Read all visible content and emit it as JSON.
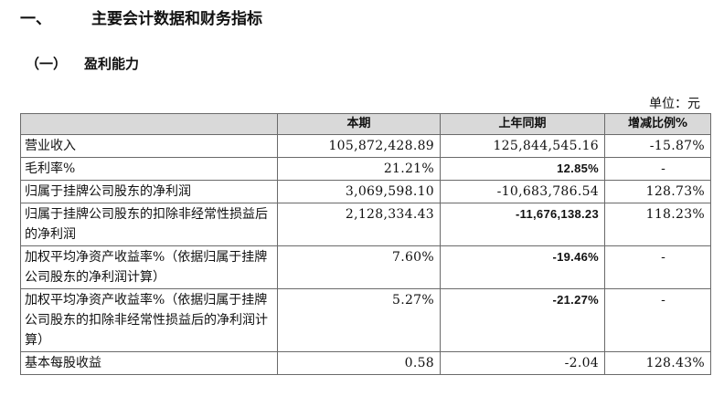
{
  "heading1": {
    "number": "一、",
    "title": "主要会计数据和财务指标"
  },
  "heading2": {
    "number": "（一）",
    "title": "盈利能力"
  },
  "unit_label": "单位：元",
  "table": {
    "headers": [
      "",
      "本期",
      "上年同期",
      "增减比例%"
    ],
    "rows": [
      {
        "label": "营业收入",
        "current": "105,872,428.89",
        "previous": "125,844,545.16",
        "change": "-15.87%"
      },
      {
        "label": "毛利率%",
        "current": "21.21%",
        "previous": "12.85%",
        "change": "-"
      },
      {
        "label": "归属于挂牌公司股东的净利润",
        "current": "3,069,598.10",
        "previous": "-10,683,786.54",
        "change": "128.73%"
      },
      {
        "label": "归属于挂牌公司股东的扣除非经常性损益后的净利润",
        "current": "2,128,334.43",
        "previous": "-11,676,138.23",
        "change": "118.23%"
      },
      {
        "label": "加权平均净资产收益率%（依据归属于挂牌公司股东的净利润计算）",
        "current": "7.60%",
        "previous": "-19.46%",
        "change": "-"
      },
      {
        "label": "加权平均净资产收益率%（依据归属于挂牌公司股东的扣除非经常性损益后的净利润计算）",
        "current": "5.27%",
        "previous": "-21.27%",
        "change": "-"
      },
      {
        "label": "基本每股收益",
        "current": "0.58",
        "previous": "-2.04",
        "change": "128.43%"
      }
    ]
  }
}
